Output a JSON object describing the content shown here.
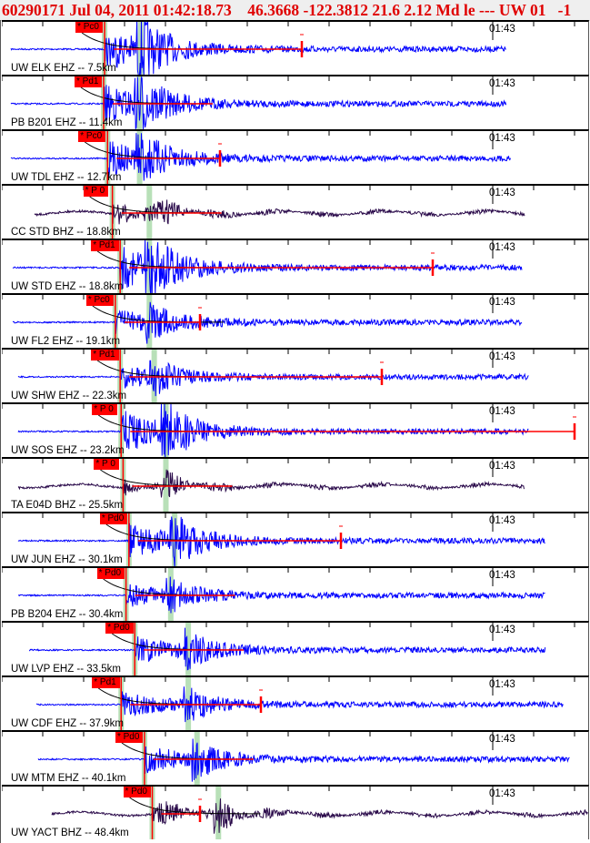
{
  "header": {
    "title": "60290171 Jul 04, 2011 01:42:18.73    46.3668 -122.3812 21.6 2.12 Md le --- UW 01   -1"
  },
  "time_label": "01:43",
  "colors": {
    "header_text": "#e00000",
    "short_period": "#0000ff",
    "broadband": "#2a0a4a",
    "pick": "#ff0000",
    "predicted": "#b8e0b8"
  },
  "stations": [
    {
      "label": "UW ELK EHZ -- 7.5km",
      "phase": "* Pc0",
      "type": "EHZ",
      "p_time": 20.1,
      "s_time": 23.8
    },
    {
      "label": "PB B201 EHZ -- 11.4km",
      "phase": "* Pd1",
      "type": "EHZ",
      "p_time": 20.0,
      "s_time": 23.7
    },
    {
      "label": "UW TDL EHZ -- 12.7km",
      "phase": "* Pc0",
      "type": "EHZ",
      "p_time": 20.4,
      "s_time": 23.7
    },
    {
      "label": "CC STD BHZ -- 18.8km",
      "phase": "* P 0",
      "type": "BHZ",
      "p_time": 20.9,
      "s_time": 24.7
    },
    {
      "label": "UW STD EHZ -- 18.8km",
      "phase": "* Pd1",
      "type": "EHZ",
      "p_time": 21.7,
      "s_time": 24.7
    },
    {
      "label": "UW FL2 EHZ -- 19.1km",
      "phase": "* Pc0",
      "type": "EHZ",
      "p_time": 21.2,
      "s_time": 24.7
    },
    {
      "label": "UW SHW EHZ -- 22.3km",
      "phase": "* Pd1",
      "type": "EHZ",
      "p_time": 21.7,
      "s_time": 25.2
    },
    {
      "label": "UW SOS EHZ -- 23.2km",
      "phase": "* P 0",
      "type": "EHZ",
      "p_time": 21.8,
      "s_time": 26.4
    },
    {
      "label": "TA E04D BHZ -- 25.5km",
      "phase": "* P 0",
      "type": "BHZ",
      "p_time": 22.0,
      "s_time": 26.4
    },
    {
      "label": "UW JUN EHZ -- 30.1km",
      "phase": "* Pd0",
      "type": "EHZ",
      "p_time": 22.6,
      "s_time": 27.3
    },
    {
      "label": "PB B204 EHZ -- 30.4km",
      "phase": "* Pd0",
      "type": "EHZ",
      "p_time": 22.3,
      "s_time": 26.9
    },
    {
      "label": "UW LVP EHZ -- 33.5km",
      "phase": "* Pd0",
      "type": "EHZ",
      "p_time": 23.2,
      "s_time": 28.7
    },
    {
      "label": "UW CDF EHZ -- 37.9km",
      "phase": "* Pd1",
      "type": "EHZ",
      "p_time": 21.8,
      "s_time": 28.7
    },
    {
      "label": "UW MTM EHZ -- 40.1km",
      "phase": "* Pd0",
      "type": "EHZ",
      "p_time": 24.2,
      "s_time": 29.6
    },
    {
      "label": "UW YACT BHZ -- 48.4km",
      "phase": "* Pd0",
      "type": "BHZ",
      "p_time": 25.0,
      "s_time": 31.8
    }
  ]
}
